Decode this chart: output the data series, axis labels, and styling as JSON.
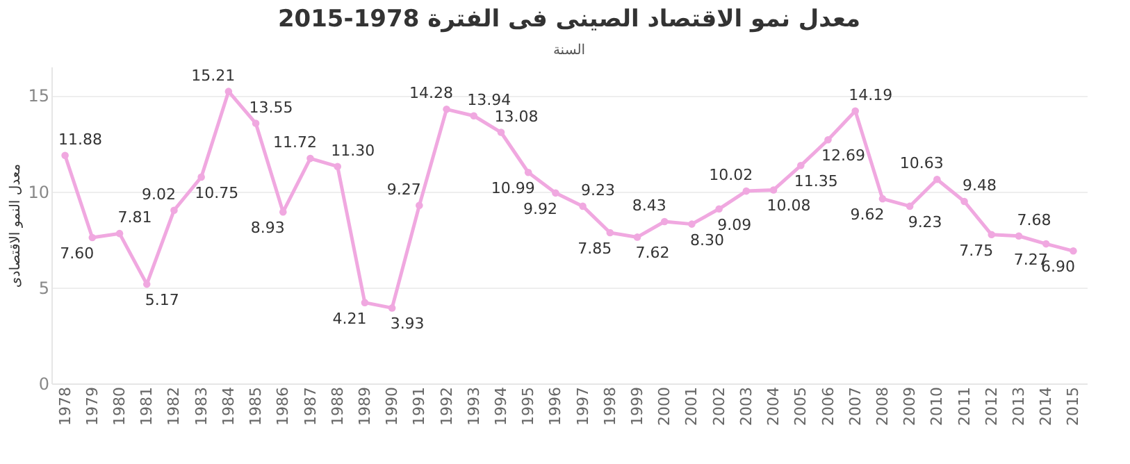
{
  "chart_data": {
    "type": "line",
    "title": "معدل نمو الاقتصاد الصينى فى الفترة 1978-2015",
    "xlabel": "السنة",
    "ylabel": "معدل النمو الاقتصادى",
    "categories": [
      "1978",
      "1979",
      "1980",
      "1981",
      "1982",
      "1983",
      "1984",
      "1985",
      "1986",
      "1987",
      "1988",
      "1989",
      "1990",
      "1991",
      "1992",
      "1993",
      "1994",
      "1995",
      "1996",
      "1997",
      "1998",
      "1999",
      "2000",
      "2001",
      "2002",
      "2003",
      "2004",
      "2005",
      "2006",
      "2007",
      "2008",
      "2009",
      "2010",
      "2011",
      "2012",
      "2013",
      "2014",
      "2015"
    ],
    "series": [
      {
        "color": "#f0a8e0",
        "values": [
          11.88,
          7.6,
          7.81,
          5.17,
          9.02,
          10.75,
          15.21,
          13.55,
          8.93,
          11.72,
          11.3,
          4.21,
          3.93,
          9.27,
          14.28,
          13.94,
          13.08,
          10.99,
          9.92,
          9.23,
          7.85,
          7.62,
          8.43,
          8.3,
          9.09,
          10.02,
          10.08,
          11.35,
          12.69,
          14.19,
          9.62,
          9.23,
          10.63,
          9.48,
          7.75,
          7.68,
          7.27,
          6.9
        ]
      }
    ],
    "value_labels": [
      "11.88",
      "7.60",
      "7.81",
      "5.17",
      "9.02",
      "10.75",
      "15.21",
      "13.55",
      "8.93",
      "11.72",
      "11.30",
      "4.21",
      "3.93",
      "9.27",
      "14.28",
      "13.94",
      "13.08",
      "10.99",
      "9.92",
      "9.23",
      "7.85",
      "7.62",
      "8.43",
      "8.30",
      "9.09",
      "10.02",
      "10.08",
      "11.35",
      "12.69",
      "14.19",
      "9.62",
      "9.23",
      "10.63",
      "9.48",
      "7.75",
      "7.68",
      "7.27",
      "6.90"
    ],
    "ylim": [
      0,
      16.5
    ],
    "yticks": [
      0,
      5,
      10,
      15
    ],
    "grid": "y",
    "marker": "circle",
    "line_style": "solid"
  }
}
